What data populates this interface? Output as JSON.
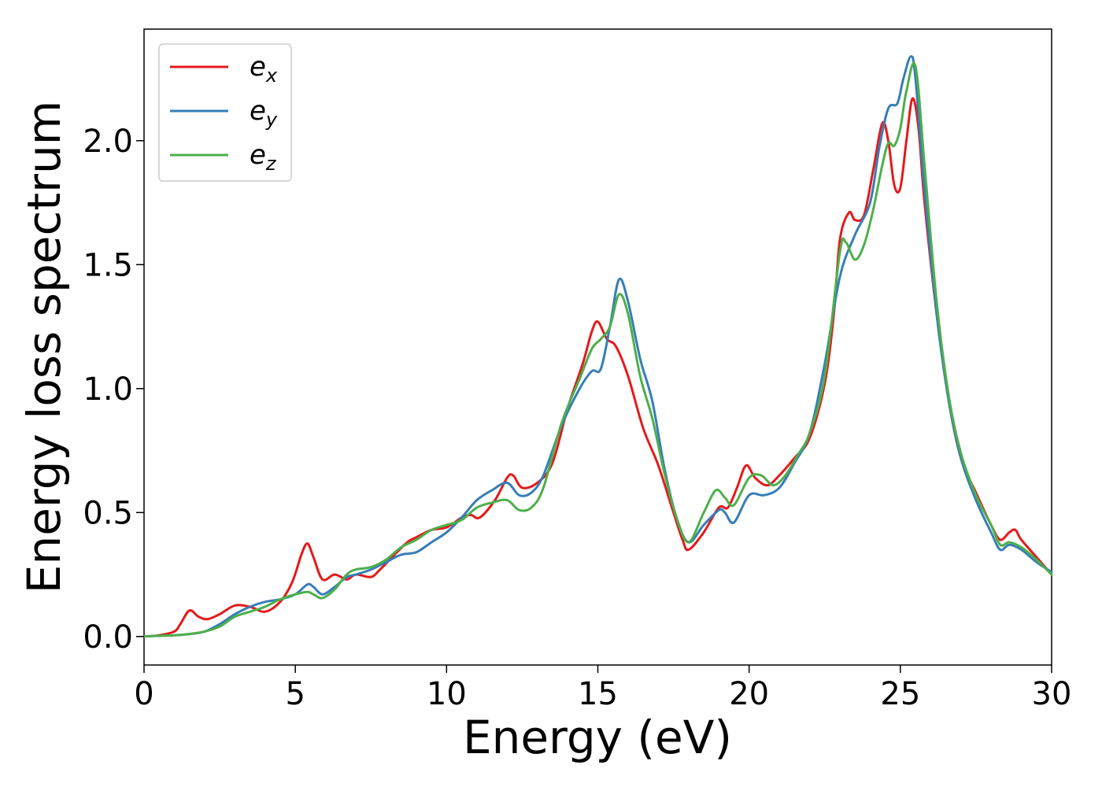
{
  "chart_data": {
    "type": "line",
    "xlabel": "Energy (eV)",
    "ylabel": "Energy loss spectrum",
    "xlim": [
      0,
      30
    ],
    "ylim": [
      -0.115,
      2.45
    ],
    "xticks": [
      0,
      5,
      10,
      15,
      20,
      25,
      30
    ],
    "xtick_labels": [
      "0",
      "5",
      "10",
      "15",
      "20",
      "25",
      "30"
    ],
    "yticks": [
      0.0,
      0.5,
      1.0,
      1.5,
      2.0
    ],
    "ytick_labels": [
      "0.0",
      "0.5",
      "1.0",
      "1.5",
      "2.0"
    ],
    "grid": false,
    "legend_position": "top-left",
    "series": [
      {
        "name": "e_x",
        "label_base": "e",
        "label_sub": "x",
        "color": "#e41a1c",
        "x": [
          0,
          0.5,
          1.0,
          1.2,
          1.5,
          1.8,
          2.1,
          2.5,
          3.0,
          3.5,
          4.0,
          4.5,
          4.9,
          5.2,
          5.4,
          5.6,
          5.9,
          6.3,
          6.7,
          7.0,
          7.5,
          7.8,
          8.2,
          8.7,
          9.0,
          9.5,
          10.0,
          10.5,
          10.8,
          11.1,
          11.6,
          12.0,
          12.2,
          12.5,
          13.0,
          13.5,
          14.0,
          14.5,
          14.8,
          15.0,
          15.3,
          15.6,
          16.0,
          16.5,
          17.0,
          17.5,
          17.8,
          18.0,
          18.5,
          19.0,
          19.3,
          19.6,
          19.9,
          20.2,
          20.6,
          21.0,
          21.5,
          22.0,
          22.5,
          22.8,
          23.0,
          23.3,
          23.5,
          23.8,
          24.1,
          24.4,
          24.6,
          24.8,
          25.0,
          25.2,
          25.4,
          25.6,
          25.8,
          26.2,
          26.6,
          27.0,
          27.5,
          28.0,
          28.3,
          28.6,
          28.8,
          29.0,
          29.5,
          30.0
        ],
        "y": [
          0,
          0.005,
          0.02,
          0.05,
          0.105,
          0.08,
          0.07,
          0.09,
          0.125,
          0.12,
          0.1,
          0.14,
          0.22,
          0.33,
          0.375,
          0.32,
          0.23,
          0.25,
          0.23,
          0.25,
          0.24,
          0.27,
          0.32,
          0.38,
          0.4,
          0.43,
          0.44,
          0.48,
          0.49,
          0.48,
          0.55,
          0.64,
          0.65,
          0.6,
          0.62,
          0.7,
          0.92,
          1.1,
          1.23,
          1.27,
          1.2,
          1.17,
          1.05,
          0.84,
          0.69,
          0.5,
          0.39,
          0.35,
          0.42,
          0.52,
          0.52,
          0.6,
          0.69,
          0.64,
          0.61,
          0.65,
          0.72,
          0.8,
          1.02,
          1.3,
          1.6,
          1.71,
          1.68,
          1.7,
          1.88,
          2.07,
          2.0,
          1.82,
          1.81,
          2.0,
          2.17,
          2.05,
          1.75,
          1.3,
          0.95,
          0.72,
          0.58,
          0.45,
          0.39,
          0.42,
          0.43,
          0.39,
          0.32,
          0.25
        ]
      },
      {
        "name": "e_y",
        "label_base": "e",
        "label_sub": "y",
        "color": "#377eb8",
        "x": [
          0,
          0.5,
          1.0,
          1.5,
          2.0,
          2.5,
          3.0,
          3.5,
          4.0,
          4.5,
          5.0,
          5.4,
          5.6,
          5.9,
          6.3,
          6.7,
          7.0,
          7.5,
          8.0,
          8.5,
          9.0,
          9.5,
          10.0,
          10.5,
          11.0,
          11.5,
          12.0,
          12.4,
          12.8,
          13.2,
          13.8,
          14.4,
          14.8,
          15.1,
          15.4,
          15.7,
          16.0,
          16.4,
          16.8,
          17.2,
          17.6,
          18.0,
          18.5,
          19.0,
          19.2,
          19.5,
          20.0,
          20.5,
          21.0,
          21.5,
          22.0,
          22.5,
          23.0,
          23.5,
          24.0,
          24.3,
          24.6,
          24.9,
          25.1,
          25.35,
          25.5,
          25.8,
          26.2,
          26.6,
          27.0,
          27.5,
          28.0,
          28.3,
          28.6,
          29.0,
          29.5,
          30.0
        ],
        "y": [
          0,
          0.003,
          0.005,
          0.01,
          0.02,
          0.05,
          0.09,
          0.12,
          0.14,
          0.15,
          0.17,
          0.21,
          0.2,
          0.17,
          0.2,
          0.24,
          0.25,
          0.27,
          0.3,
          0.33,
          0.34,
          0.38,
          0.42,
          0.48,
          0.55,
          0.59,
          0.62,
          0.57,
          0.58,
          0.65,
          0.85,
          1.0,
          1.07,
          1.08,
          1.25,
          1.44,
          1.35,
          1.12,
          0.95,
          0.68,
          0.48,
          0.38,
          0.45,
          0.51,
          0.5,
          0.46,
          0.57,
          0.57,
          0.6,
          0.7,
          0.82,
          1.1,
          1.45,
          1.62,
          1.75,
          1.97,
          2.13,
          2.15,
          2.25,
          2.34,
          2.25,
          1.8,
          1.3,
          0.95,
          0.72,
          0.55,
          0.42,
          0.35,
          0.37,
          0.35,
          0.3,
          0.26
        ]
      },
      {
        "name": "e_z",
        "label_base": "e",
        "label_sub": "z",
        "color": "#4daf4a",
        "x": [
          0,
          0.5,
          1.0,
          1.5,
          2.0,
          2.5,
          3.0,
          3.5,
          4.0,
          4.5,
          5.0,
          5.4,
          5.6,
          5.9,
          6.3,
          6.7,
          7.0,
          7.5,
          8.0,
          8.5,
          9.0,
          9.5,
          10.0,
          10.5,
          11.0,
          11.5,
          12.0,
          12.4,
          12.8,
          13.2,
          13.8,
          14.4,
          14.8,
          15.1,
          15.4,
          15.7,
          16.0,
          16.4,
          16.8,
          17.2,
          17.6,
          18.0,
          18.5,
          18.9,
          19.2,
          19.5,
          20.0,
          20.4,
          20.8,
          21.2,
          21.6,
          22.0,
          22.5,
          23.0,
          23.2,
          23.5,
          23.8,
          24.1,
          24.4,
          24.6,
          24.8,
          25.0,
          25.2,
          25.5,
          25.8,
          26.2,
          26.6,
          27.0,
          27.5,
          28.0,
          28.3,
          28.6,
          29.0,
          29.5,
          30.0
        ],
        "y": [
          0,
          0.003,
          0.005,
          0.01,
          0.02,
          0.04,
          0.08,
          0.1,
          0.12,
          0.15,
          0.17,
          0.18,
          0.17,
          0.155,
          0.19,
          0.25,
          0.27,
          0.28,
          0.31,
          0.36,
          0.39,
          0.43,
          0.45,
          0.47,
          0.52,
          0.54,
          0.55,
          0.51,
          0.52,
          0.6,
          0.86,
          1.04,
          1.16,
          1.2,
          1.25,
          1.38,
          1.3,
          1.05,
          0.88,
          0.66,
          0.48,
          0.38,
          0.5,
          0.59,
          0.56,
          0.53,
          0.64,
          0.65,
          0.61,
          0.65,
          0.73,
          0.82,
          1.05,
          1.55,
          1.59,
          1.52,
          1.58,
          1.72,
          1.9,
          1.99,
          1.98,
          2.05,
          2.2,
          2.3,
          1.9,
          1.35,
          0.97,
          0.74,
          0.57,
          0.45,
          0.37,
          0.38,
          0.36,
          0.31,
          0.25
        ]
      }
    ]
  }
}
